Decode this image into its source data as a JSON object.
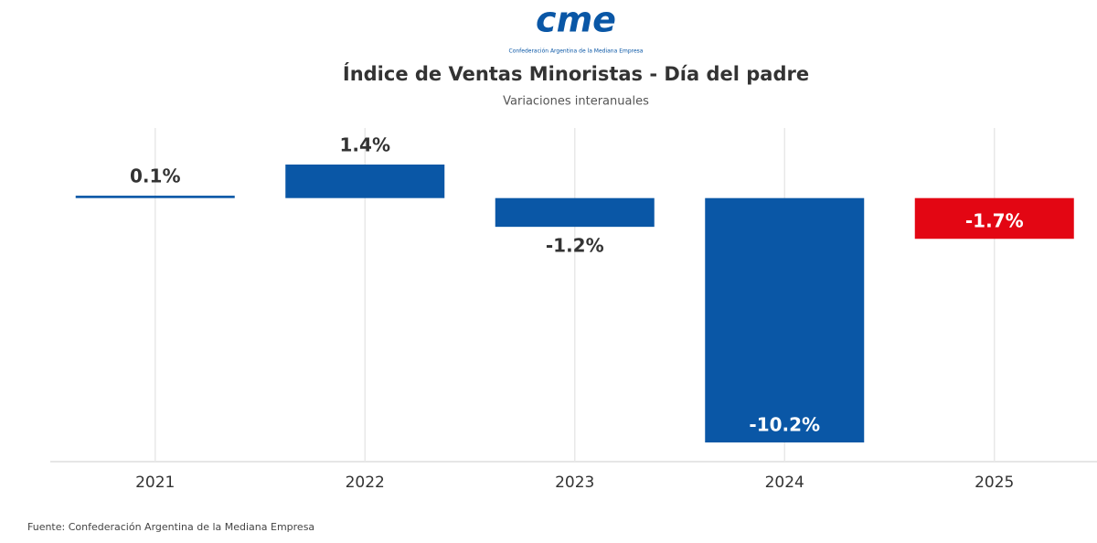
{
  "logo": {
    "text": "cme",
    "tagline": "Confederación Argentina de la Mediana Empresa"
  },
  "chart_data": {
    "type": "bar",
    "title": "Índice de Ventas Minoristas - Día del padre",
    "subtitle": "Variaciones interanuales",
    "categories": [
      "2021",
      "2022",
      "2023",
      "2024",
      "2025"
    ],
    "values": [
      0.1,
      1.4,
      -1.2,
      -10.2,
      -1.7
    ],
    "value_labels": [
      "0.1%",
      "1.4%",
      "-1.2%",
      "-10.2%",
      "-1.7%"
    ],
    "colors": [
      "#0a57a6",
      "#0a57a6",
      "#0a57a6",
      "#0a57a6",
      "#e30613"
    ],
    "grid": true,
    "source": "Fuente: Confederación Argentina de la Mediana Empresa"
  }
}
